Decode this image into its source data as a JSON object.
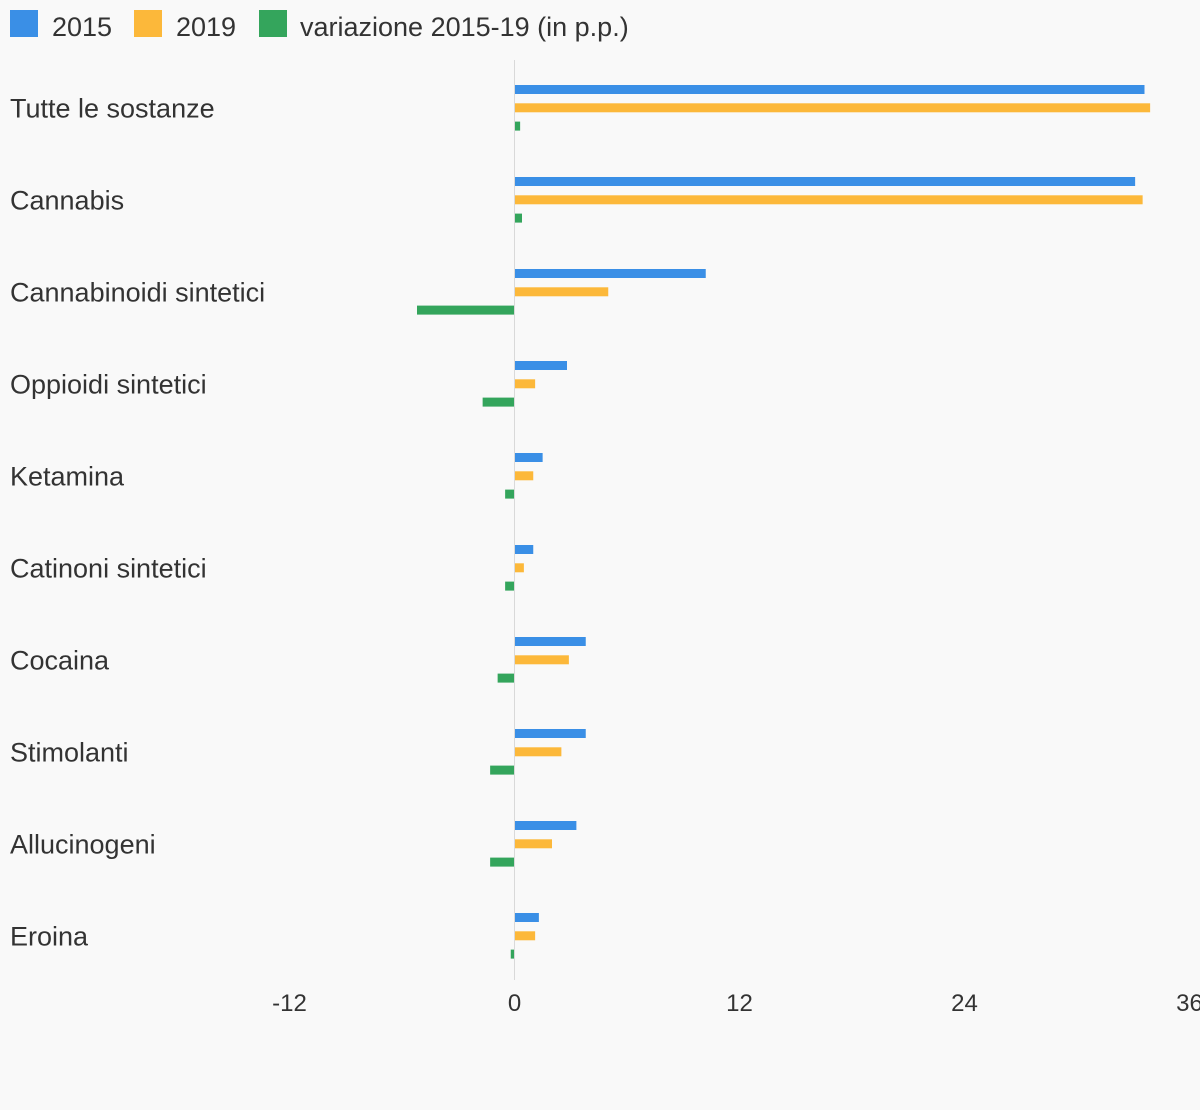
{
  "chart_data": {
    "type": "bar",
    "orientation": "horizontal",
    "title": "",
    "xlabel": "",
    "ylabel": "",
    "categories": [
      "Tutte le sostanze",
      "Cannabis",
      "Cannabinoidi sintetici",
      "Oppioidi sintetici",
      "Ketamina",
      "Catinoni sintetici",
      "Cocaina",
      "Stimolanti",
      "Allucinogeni",
      "Eroina"
    ],
    "series": [
      {
        "name": "2015",
        "color": "#3a8fe6",
        "values": [
          33.6,
          33.1,
          10.2,
          2.8,
          1.5,
          1.0,
          3.8,
          3.8,
          3.3,
          1.3
        ]
      },
      {
        "name": "2019",
        "color": "#fcb83a",
        "values": [
          33.9,
          33.5,
          5.0,
          1.1,
          1.0,
          0.5,
          2.9,
          2.5,
          2.0,
          1.1
        ]
      },
      {
        "name": "variazione 2015-19 (in p.p.)",
        "color": "#34a55c",
        "values": [
          0.3,
          0.4,
          -5.2,
          -1.7,
          -0.5,
          -0.5,
          -0.9,
          -1.3,
          -1.3,
          -0.2
        ]
      }
    ],
    "xlim": [
      -12,
      36
    ],
    "xticks": [
      "-12",
      "0",
      "12",
      "24",
      "36"
    ],
    "grid": false,
    "legend": "top-left"
  }
}
